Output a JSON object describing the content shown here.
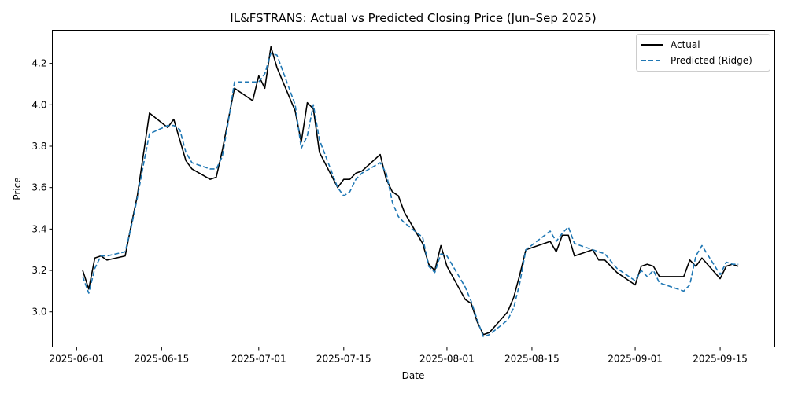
{
  "chart_data": {
    "type": "line",
    "title": "IL&FSTRANS: Actual vs Predicted Closing Price (Jun–Sep 2025)",
    "xlabel": "Date",
    "ylabel": "Price",
    "xlim": [
      "2025-05-28",
      "2025-09-24"
    ],
    "ylim": [
      2.83,
      4.36
    ],
    "x_ticks": [
      "2025-06-01",
      "2025-06-15",
      "2025-07-01",
      "2025-07-15",
      "2025-08-01",
      "2025-08-15",
      "2025-09-01",
      "2025-09-15"
    ],
    "y_ticks": [
      "3.0",
      "3.2",
      "3.4",
      "3.6",
      "3.8",
      "4.0",
      "4.2"
    ],
    "grid": false,
    "legend_position": "top-right",
    "series": [
      {
        "name": "Actual",
        "color": "#000000",
        "style": "solid",
        "points": [
          [
            "2025-06-02",
            3.2
          ],
          [
            "2025-06-03",
            3.11
          ],
          [
            "2025-06-04",
            3.26
          ],
          [
            "2025-06-05",
            3.27
          ],
          [
            "2025-06-06",
            3.25
          ],
          [
            "2025-06-09",
            3.27
          ],
          [
            "2025-06-10",
            3.42
          ],
          [
            "2025-06-11",
            3.56
          ],
          [
            "2025-06-12",
            3.76
          ],
          [
            "2025-06-13",
            3.96
          ],
          [
            "2025-06-16",
            3.89
          ],
          [
            "2025-06-17",
            3.93
          ],
          [
            "2025-06-18",
            3.83
          ],
          [
            "2025-06-19",
            3.73
          ],
          [
            "2025-06-20",
            3.69
          ],
          [
            "2025-06-23",
            3.64
          ],
          [
            "2025-06-24",
            3.65
          ],
          [
            "2025-06-25",
            3.78
          ],
          [
            "2025-06-26",
            3.93
          ],
          [
            "2025-06-27",
            4.08
          ],
          [
            "2025-06-30",
            4.02
          ],
          [
            "2025-07-01",
            4.14
          ],
          [
            "2025-07-02",
            4.08
          ],
          [
            "2025-07-03",
            4.28
          ],
          [
            "2025-07-04",
            4.18
          ],
          [
            "2025-07-07",
            3.97
          ],
          [
            "2025-07-08",
            3.82
          ],
          [
            "2025-07-09",
            4.01
          ],
          [
            "2025-07-10",
            3.98
          ],
          [
            "2025-07-11",
            3.77
          ],
          [
            "2025-07-14",
            3.6
          ],
          [
            "2025-07-15",
            3.64
          ],
          [
            "2025-07-16",
            3.64
          ],
          [
            "2025-07-17",
            3.67
          ],
          [
            "2025-07-18",
            3.68
          ],
          [
            "2025-07-21",
            3.76
          ],
          [
            "2025-07-22",
            3.64
          ],
          [
            "2025-07-23",
            3.58
          ],
          [
            "2025-07-24",
            3.56
          ],
          [
            "2025-07-25",
            3.48
          ],
          [
            "2025-07-28",
            3.33
          ],
          [
            "2025-07-29",
            3.23
          ],
          [
            "2025-07-30",
            3.2
          ],
          [
            "2025-07-31",
            3.32
          ],
          [
            "2025-08-01",
            3.22
          ],
          [
            "2025-08-04",
            3.06
          ],
          [
            "2025-08-05",
            3.04
          ],
          [
            "2025-08-06",
            2.95
          ],
          [
            "2025-08-07",
            2.89
          ],
          [
            "2025-08-08",
            2.9
          ],
          [
            "2025-08-11",
            3.0
          ],
          [
            "2025-08-12",
            3.07
          ],
          [
            "2025-08-13",
            3.18
          ],
          [
            "2025-08-14",
            3.3
          ],
          [
            "2025-08-18",
            3.34
          ],
          [
            "2025-08-19",
            3.29
          ],
          [
            "2025-08-20",
            3.37
          ],
          [
            "2025-08-21",
            3.37
          ],
          [
            "2025-08-22",
            3.27
          ],
          [
            "2025-08-25",
            3.3
          ],
          [
            "2025-08-26",
            3.25
          ],
          [
            "2025-08-27",
            3.25
          ],
          [
            "2025-08-29",
            3.19
          ],
          [
            "2025-09-01",
            3.13
          ],
          [
            "2025-09-02",
            3.22
          ],
          [
            "2025-09-03",
            3.23
          ],
          [
            "2025-09-04",
            3.22
          ],
          [
            "2025-09-05",
            3.17
          ],
          [
            "2025-09-09",
            3.17
          ],
          [
            "2025-09-10",
            3.25
          ],
          [
            "2025-09-11",
            3.22
          ],
          [
            "2025-09-12",
            3.26
          ],
          [
            "2025-09-15",
            3.16
          ],
          [
            "2025-09-16",
            3.22
          ],
          [
            "2025-09-17",
            3.23
          ],
          [
            "2025-09-18",
            3.22
          ]
        ]
      },
      {
        "name": "Predicted (Ridge)",
        "color": "#1f77b4",
        "style": "dashed",
        "points": [
          [
            "2025-06-02",
            3.17
          ],
          [
            "2025-06-03",
            3.09
          ],
          [
            "2025-06-04",
            3.21
          ],
          [
            "2025-06-05",
            3.27
          ],
          [
            "2025-06-06",
            3.27
          ],
          [
            "2025-06-09",
            3.29
          ],
          [
            "2025-06-10",
            3.41
          ],
          [
            "2025-06-11",
            3.55
          ],
          [
            "2025-06-12",
            3.71
          ],
          [
            "2025-06-13",
            3.86
          ],
          [
            "2025-06-16",
            3.9
          ],
          [
            "2025-06-17",
            3.9
          ],
          [
            "2025-06-18",
            3.88
          ],
          [
            "2025-06-19",
            3.77
          ],
          [
            "2025-06-20",
            3.72
          ],
          [
            "2025-06-23",
            3.69
          ],
          [
            "2025-06-24",
            3.69
          ],
          [
            "2025-06-25",
            3.75
          ],
          [
            "2025-06-26",
            3.92
          ],
          [
            "2025-06-27",
            4.11
          ],
          [
            "2025-06-30",
            4.11
          ],
          [
            "2025-07-01",
            4.11
          ],
          [
            "2025-07-02",
            4.15
          ],
          [
            "2025-07-03",
            4.25
          ],
          [
            "2025-07-04",
            4.24
          ],
          [
            "2025-07-07",
            4.0
          ],
          [
            "2025-07-08",
            3.79
          ],
          [
            "2025-07-09",
            3.85
          ],
          [
            "2025-07-10",
            4.0
          ],
          [
            "2025-07-11",
            3.83
          ],
          [
            "2025-07-14",
            3.6
          ],
          [
            "2025-07-15",
            3.56
          ],
          [
            "2025-07-16",
            3.58
          ],
          [
            "2025-07-17",
            3.64
          ],
          [
            "2025-07-18",
            3.67
          ],
          [
            "2025-07-21",
            3.72
          ],
          [
            "2025-07-22",
            3.67
          ],
          [
            "2025-07-23",
            3.53
          ],
          [
            "2025-07-24",
            3.46
          ],
          [
            "2025-07-25",
            3.43
          ],
          [
            "2025-07-28",
            3.36
          ],
          [
            "2025-07-29",
            3.22
          ],
          [
            "2025-07-30",
            3.19
          ],
          [
            "2025-07-31",
            3.28
          ],
          [
            "2025-08-01",
            3.27
          ],
          [
            "2025-08-04",
            3.12
          ],
          [
            "2025-08-05",
            3.05
          ],
          [
            "2025-08-06",
            2.96
          ],
          [
            "2025-08-07",
            2.88
          ],
          [
            "2025-08-08",
            2.89
          ],
          [
            "2025-08-11",
            2.96
          ],
          [
            "2025-08-12",
            3.02
          ],
          [
            "2025-08-13",
            3.14
          ],
          [
            "2025-08-14",
            3.3
          ],
          [
            "2025-08-18",
            3.39
          ],
          [
            "2025-08-19",
            3.34
          ],
          [
            "2025-08-20",
            3.38
          ],
          [
            "2025-08-21",
            3.41
          ],
          [
            "2025-08-22",
            3.33
          ],
          [
            "2025-08-25",
            3.3
          ],
          [
            "2025-08-26",
            3.29
          ],
          [
            "2025-08-27",
            3.28
          ],
          [
            "2025-08-29",
            3.21
          ],
          [
            "2025-09-01",
            3.15
          ],
          [
            "2025-09-02",
            3.2
          ],
          [
            "2025-09-03",
            3.17
          ],
          [
            "2025-09-04",
            3.2
          ],
          [
            "2025-09-05",
            3.14
          ],
          [
            "2025-09-09",
            3.1
          ],
          [
            "2025-09-10",
            3.13
          ],
          [
            "2025-09-11",
            3.27
          ],
          [
            "2025-09-12",
            3.32
          ],
          [
            "2025-09-15",
            3.18
          ],
          [
            "2025-09-16",
            3.24
          ],
          [
            "2025-09-17",
            3.23
          ],
          [
            "2025-09-18",
            3.23
          ]
        ]
      }
    ]
  }
}
